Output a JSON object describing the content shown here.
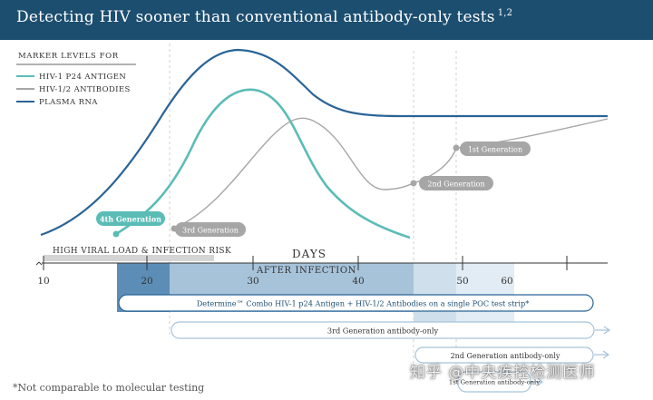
{
  "header": {
    "title": "Detecting HIV sooner than conventional antibody-only tests",
    "superscript": "1,2"
  },
  "legend": {
    "heading": "MARKER LEVELS FOR",
    "items": [
      {
        "label": "HIV-1 P24 ANTIGEN",
        "color": "#5bbcb6"
      },
      {
        "label": "HIV-1/2 ANTIBODIES",
        "color": "#a6a6a6"
      },
      {
        "label": "PLASMA RNA",
        "color": "#2a6496"
      }
    ]
  },
  "generations": {
    "fourth": "4th Generation",
    "third": "3rd Generation",
    "second": "2nd Generation",
    "first": "1st Generation"
  },
  "axis": {
    "risk_label": "HIGH VIRAL LOAD & INFECTION RISK",
    "days_label": "DAYS",
    "after_infection_label": "AFTER INFECTION",
    "ticks": [
      "10",
      "20",
      "30",
      "40",
      "50",
      "60"
    ]
  },
  "tests": [
    {
      "label": "Determine™ Combo HIV-1 p24 Antigen + HIV-1/2 Antibodies on a single POC test strip*"
    },
    {
      "label": "3rd Generation antibody-only"
    },
    {
      "label": "2nd Generation antibody-only"
    },
    {
      "label": "1st Generation antibody-only"
    }
  ],
  "footnote": "*Not comparable to molecular testing",
  "watermark": "知乎 @中央疾控检测医师",
  "colors": {
    "header": "#1c4e70",
    "teal": "#5bbcb6",
    "gray": "#a6a6a6",
    "blue": "#2a6496"
  }
}
